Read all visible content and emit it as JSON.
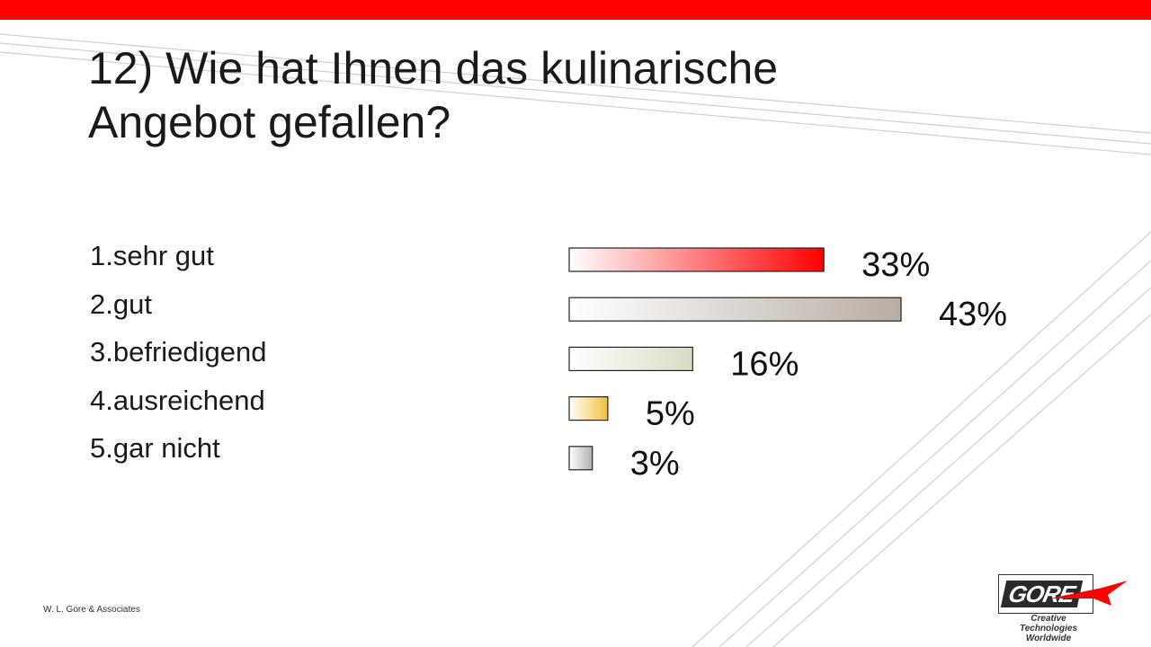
{
  "slide": {
    "title_line1": "12) Wie hat Ihnen das kulinarische",
    "title_line2": "Angebot gefallen?",
    "footer": "W. L. Gore & Associates"
  },
  "options": [
    "1.sehr gut",
    "2.gut",
    "3.befriedigend",
    "4.ausreichend",
    "5.gar nicht"
  ],
  "logo": {
    "word": "GORE",
    "tagline_line1": "Creative Technologies",
    "tagline_line2": "Worldwide"
  },
  "colors": {
    "accent": "#ff0000",
    "bar_colors": [
      "#ff0000",
      "#b8ada4",
      "#d8dcc4",
      "#f0c040",
      "#b0b0b0"
    ]
  },
  "chart_data": {
    "type": "bar",
    "orientation": "horizontal",
    "categories": [
      "1.sehr gut",
      "2.gut",
      "3.befriedigend",
      "4.ausreichend",
      "5.gar nicht"
    ],
    "values": [
      33,
      43,
      16,
      5,
      3
    ],
    "data_labels": [
      "33%",
      "43%",
      "16%",
      "5%",
      "3%"
    ],
    "xlim": [
      0,
      43
    ],
    "grid": false
  }
}
